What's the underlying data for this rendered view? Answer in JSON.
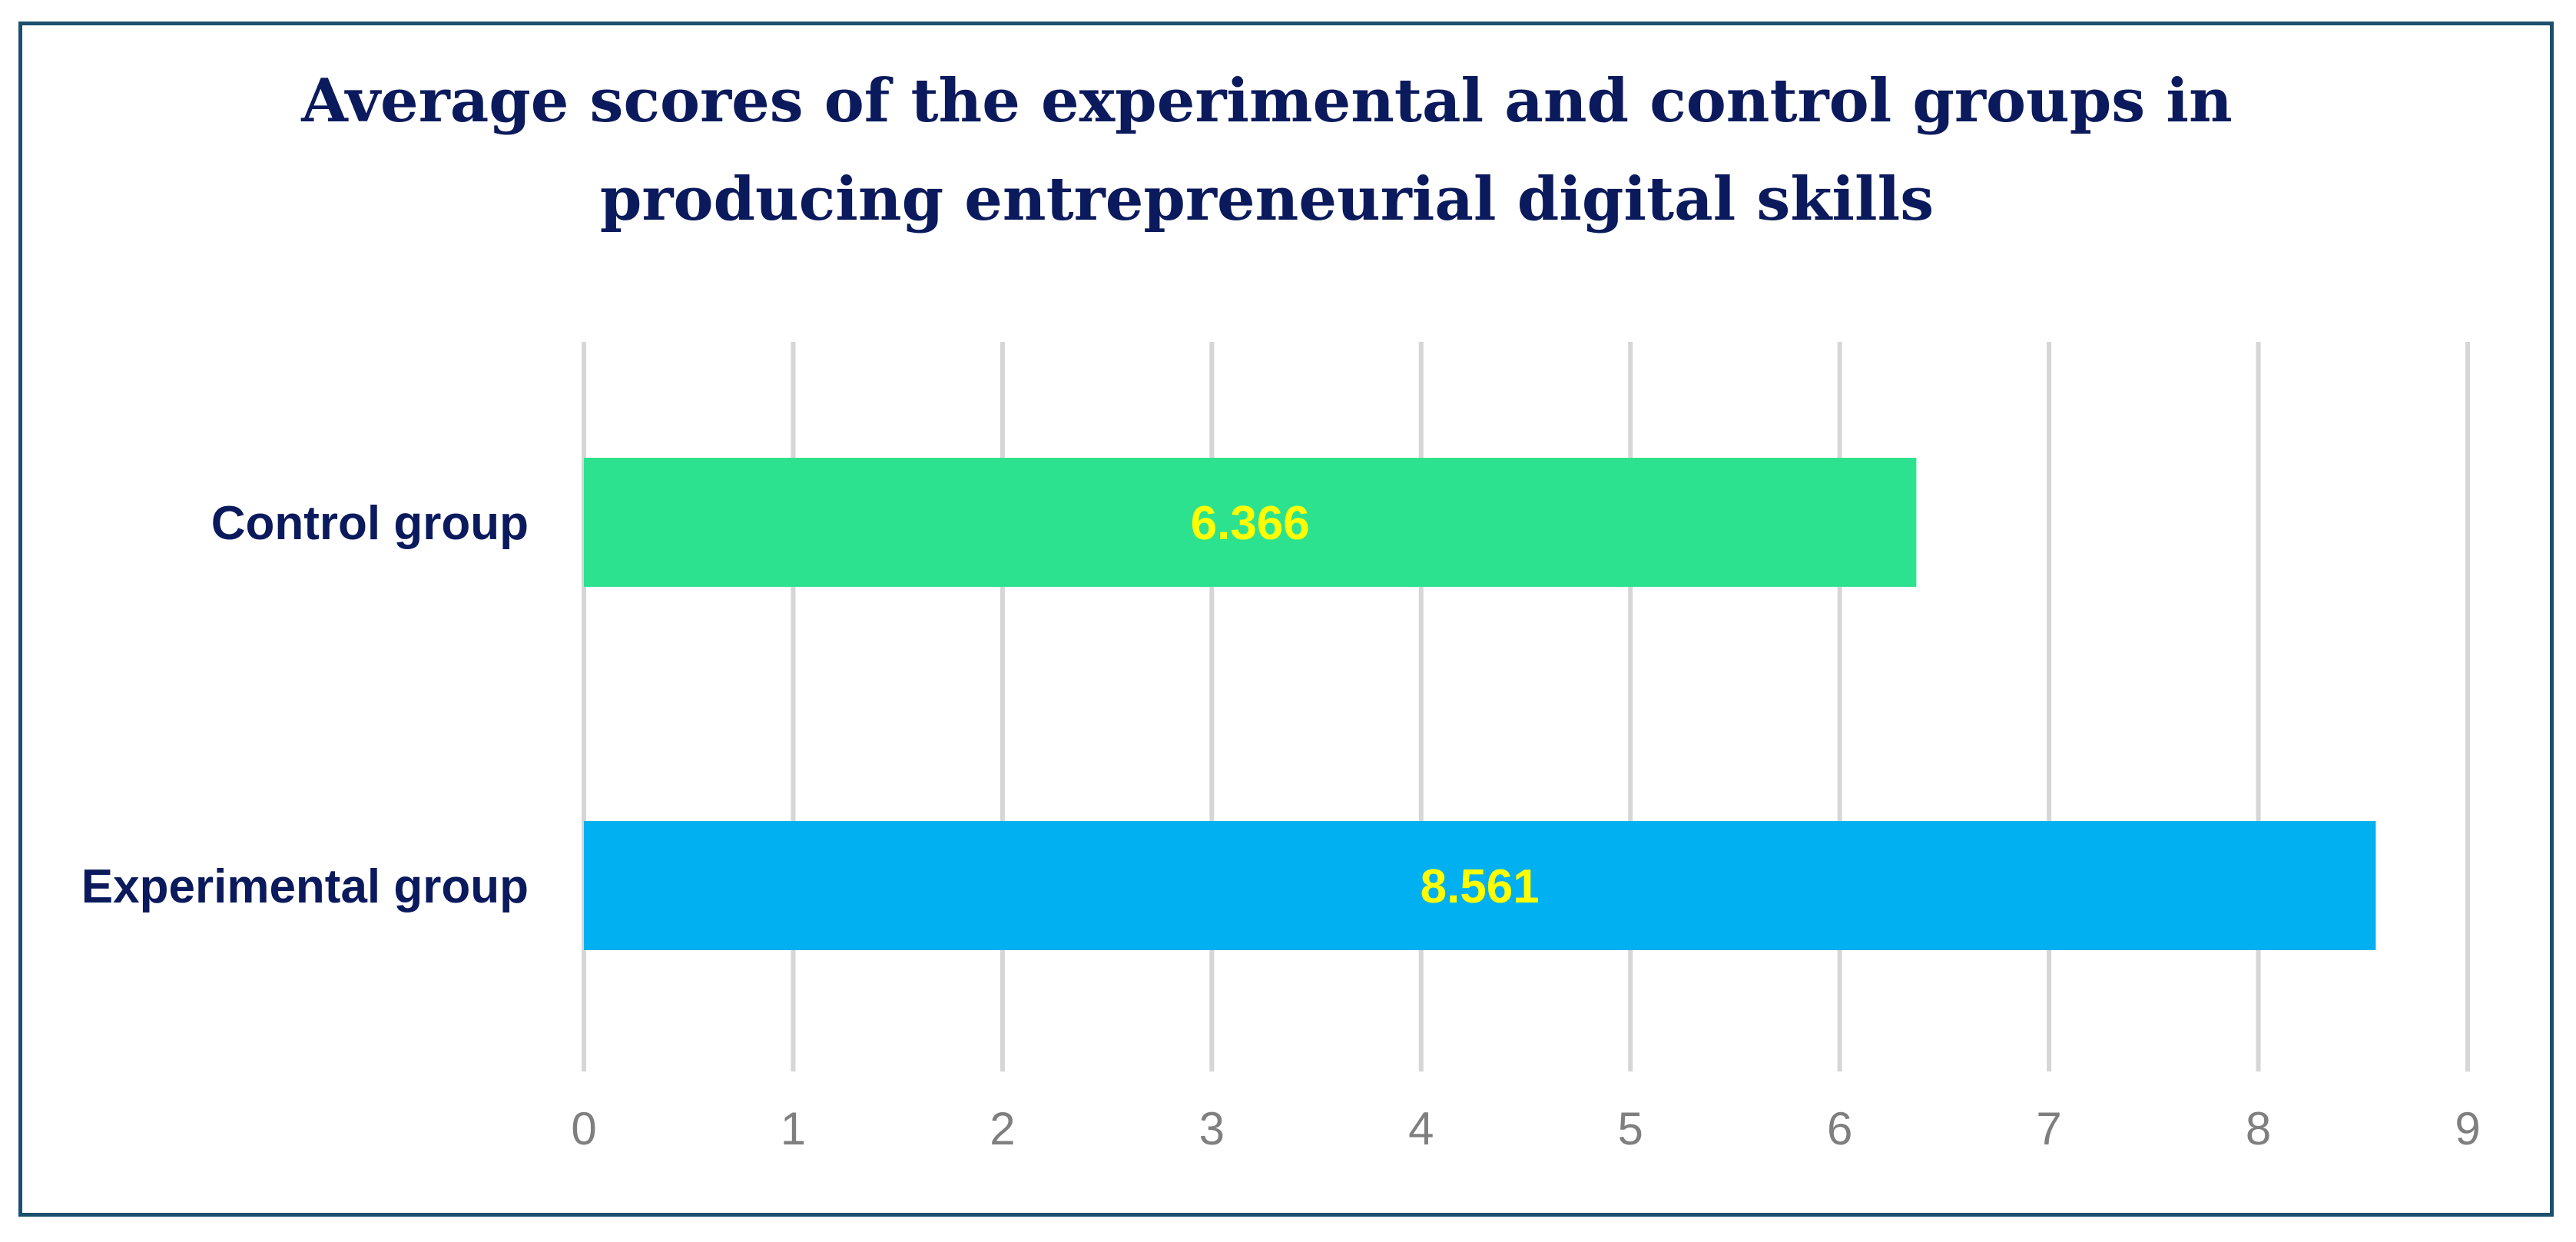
{
  "chart_data": {
    "type": "bar",
    "orientation": "horizontal",
    "title": "Average scores of the experimental and control groups in producing entrepreneurial digital skills",
    "title_lines": [
      "Average scores of the experimental and control groups in",
      "producing entrepreneurial digital skills"
    ],
    "categories": [
      "Control group",
      "Experimental group"
    ],
    "values": [
      6.366,
      8.561
    ],
    "value_labels": [
      "6.366",
      "8.561"
    ],
    "colors": [
      "#2de28f",
      "#00b0f0"
    ],
    "label_color": "#ffff00",
    "category_label_color": "#0b1a5c",
    "xlim": [
      0,
      9
    ],
    "xticks": [
      "0",
      "1",
      "2",
      "3",
      "4",
      "5",
      "6",
      "7",
      "8",
      "9"
    ],
    "grid": true,
    "legend": "none",
    "xlabel": "",
    "ylabel": ""
  }
}
